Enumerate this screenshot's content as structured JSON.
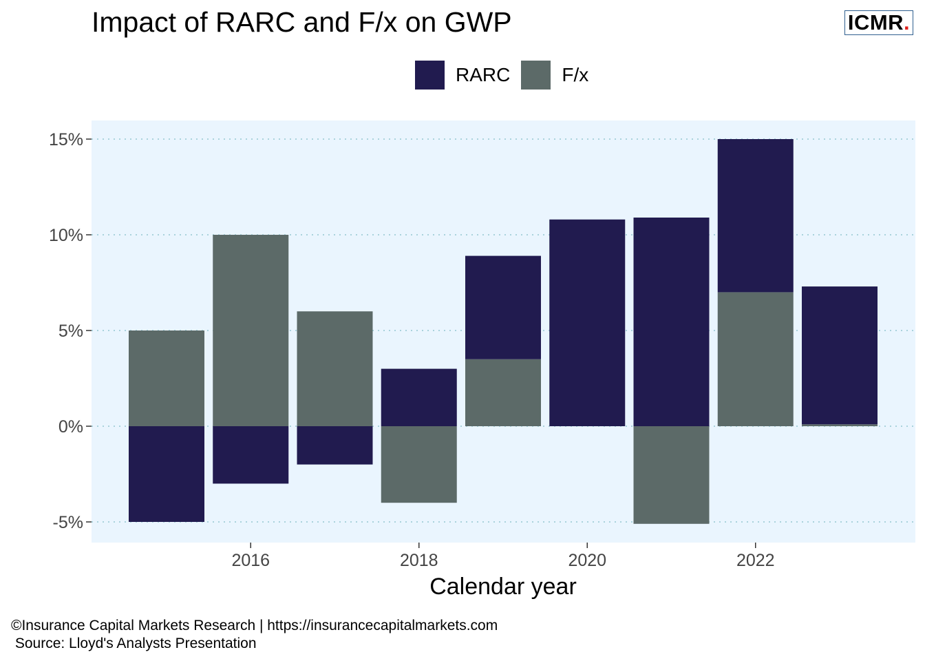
{
  "header": {
    "title": "Impact of RARC and F/x on GWP",
    "logo_text": "ICMR",
    "logo_dot": "."
  },
  "legend": {
    "items": [
      {
        "label": "RARC",
        "color": "#211b4f"
      },
      {
        "label": "F/x",
        "color": "#5c6a68"
      }
    ]
  },
  "chart_data": {
    "type": "bar",
    "stacked": true,
    "title": "Impact of RARC and F/x on GWP",
    "xlabel": "Calendar year",
    "ylabel": "",
    "x": [
      2015,
      2016,
      2017,
      2018,
      2019,
      2020,
      2021,
      2022,
      2023
    ],
    "x_tick_labels": [
      "2016",
      "2018",
      "2020",
      "2022"
    ],
    "y_tick_labels": [
      "15%",
      "10%",
      "5%",
      "0%",
      "-5%"
    ],
    "ylim": [
      -6,
      16
    ],
    "grid": "horizontal dotted",
    "legend_position": "top",
    "background": "#eaf5fe",
    "series": [
      {
        "name": "RARC",
        "color": "#211b4f",
        "values": [
          -5,
          -3,
          -2,
          3,
          5.4,
          10.8,
          10.9,
          8,
          7.2
        ]
      },
      {
        "name": "F/x",
        "color": "#5c6a68",
        "values": [
          5,
          10,
          6,
          -4,
          3.5,
          0,
          -5.1,
          7,
          0.1
        ]
      }
    ]
  },
  "footer": {
    "copyright": "©Insurance Capital Markets Research | https://insurancecapitalmarkets.com",
    "source": " Source: Lloyd's Analysts Presentation"
  }
}
